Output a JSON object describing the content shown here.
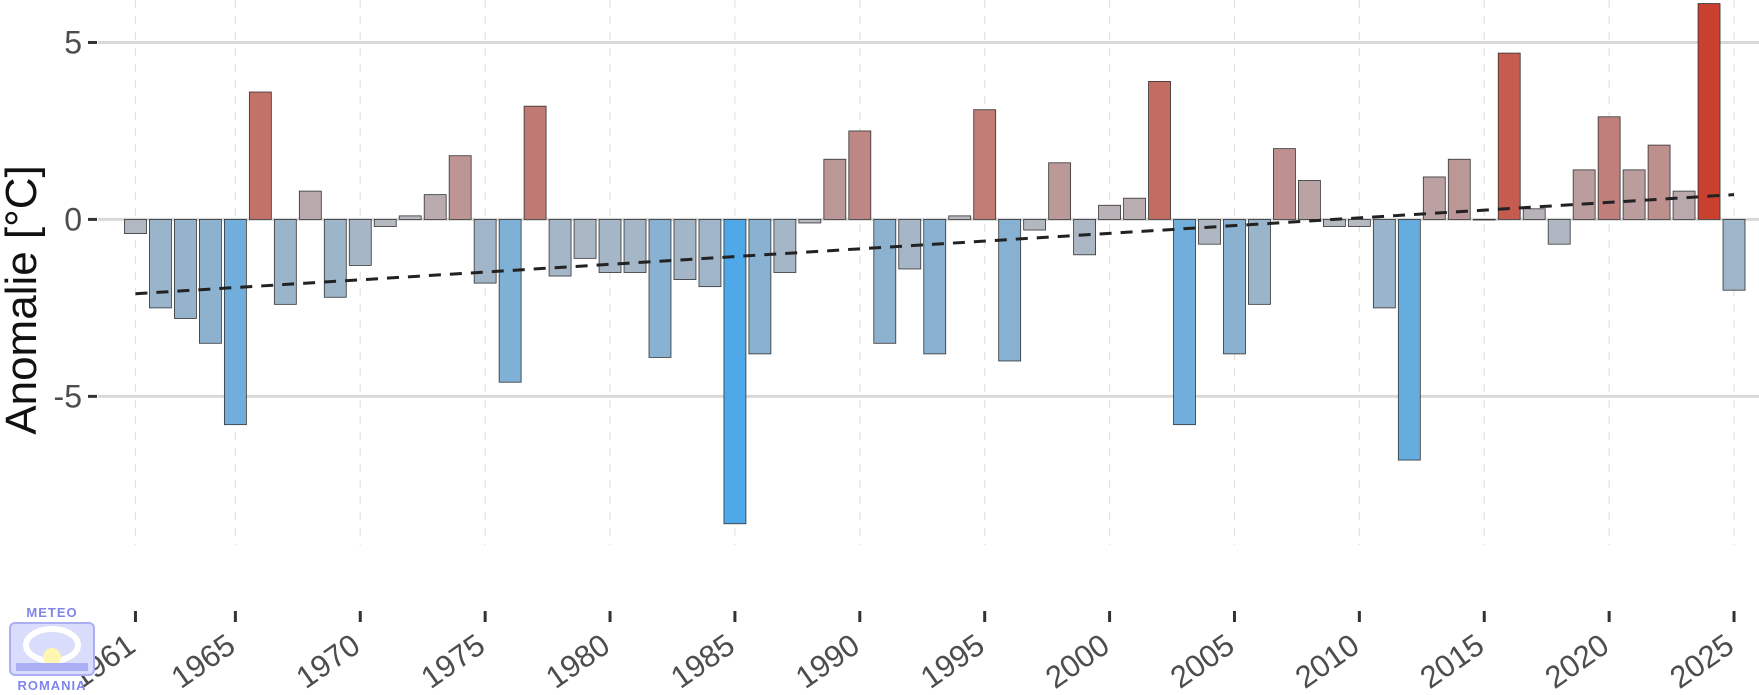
{
  "chart_data": {
    "type": "bar",
    "title": "",
    "xlabel": "",
    "ylabel": "Anomalie [°C]",
    "ylim": [
      -9.2,
      6.2
    ],
    "xlim": [
      1959.5,
      2026
    ],
    "yticks": [
      -5,
      0,
      5
    ],
    "ytick_labels": [
      "-5",
      "0",
      "5"
    ],
    "xticks": [
      1961,
      1965,
      1970,
      1975,
      1980,
      1985,
      1990,
      1995,
      2000,
      2005,
      2010,
      2015,
      2020,
      2025
    ],
    "xtick_labels": [
      "1961",
      "1965",
      "1970",
      "1975",
      "1980",
      "1985",
      "1990",
      "1995",
      "2000",
      "2005",
      "2010",
      "2015",
      "2020",
      "2025"
    ],
    "grid": true,
    "legend": "none",
    "colors": {
      "cold_max": "#4fa8e8",
      "neutral": "#b7b9bf",
      "warm_max": "#c9402e",
      "trend": "#222222",
      "grid_major": "#d9d9d9",
      "grid_minor": "#e2e2e2"
    },
    "x": [
      1961,
      1962,
      1963,
      1964,
      1965,
      1966,
      1967,
      1968,
      1969,
      1970,
      1971,
      1972,
      1973,
      1974,
      1975,
      1976,
      1977,
      1978,
      1979,
      1980,
      1981,
      1982,
      1983,
      1984,
      1985,
      1986,
      1987,
      1988,
      1989,
      1990,
      1991,
      1992,
      1993,
      1994,
      1995,
      1996,
      1997,
      1998,
      1999,
      2000,
      2001,
      2002,
      2003,
      2004,
      2005,
      2006,
      2007,
      2008,
      2009,
      2010,
      2011,
      2012,
      2013,
      2014,
      2015,
      2016,
      2017,
      2018,
      2019,
      2020,
      2021,
      2022,
      2023,
      2024,
      2025
    ],
    "values": [
      -0.4,
      -2.5,
      -2.8,
      -3.5,
      -5.8,
      3.6,
      -2.4,
      0.8,
      -2.2,
      -1.3,
      -0.2,
      0.1,
      0.7,
      1.8,
      -1.8,
      -4.6,
      3.2,
      -1.6,
      -1.1,
      -1.5,
      -1.5,
      -3.9,
      -1.7,
      -1.9,
      -8.6,
      -3.8,
      -1.5,
      -0.1,
      1.7,
      2.5,
      -3.5,
      -1.4,
      -3.8,
      0.1,
      3.1,
      -4.0,
      -0.3,
      1.6,
      -1.0,
      0.4,
      0.6,
      3.9,
      -5.8,
      -0.7,
      -3.8,
      -2.4,
      2.0,
      1.1,
      -0.2,
      -0.2,
      -2.5,
      -6.8,
      1.2,
      1.7,
      0.0,
      4.7,
      0.3,
      -0.7,
      1.4,
      2.9,
      1.4,
      2.1,
      0.8,
      6.1,
      -2.0
    ],
    "trend": {
      "x": [
        1961,
        2025
      ],
      "y": [
        -2.1,
        0.7
      ]
    }
  },
  "watermark": {
    "top_text": "METEO",
    "bottom_text": "ROMANIA"
  }
}
